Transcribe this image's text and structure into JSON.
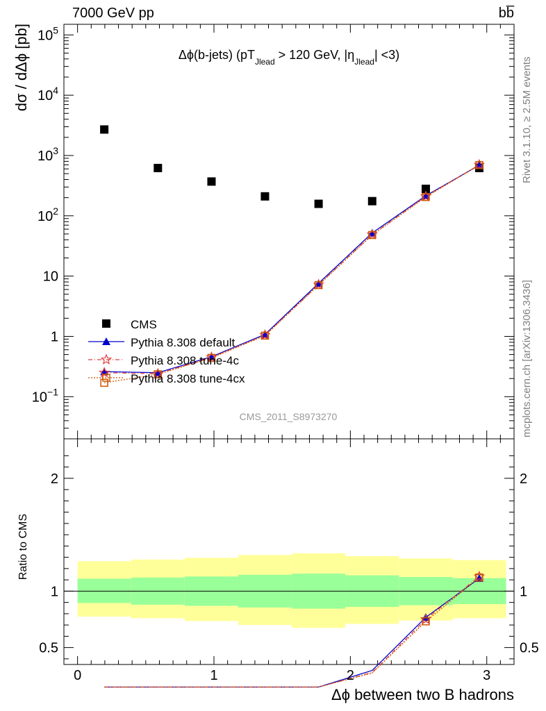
{
  "header": {
    "left": "7000 GeV pp",
    "right": "bb̅"
  },
  "side": {
    "rivet": "Rivet 3.1.10, ≥ 2.5M events",
    "mcplots": "mcplots.cern.ch [arXiv:1306.3436]"
  },
  "chart_data": {
    "type": "scatter",
    "title": "Δϕ(b-jets) (pT_Jlead > 120 GeV, |η_Jlead| <3)",
    "analysis_tag": "CMS_2011_S8973270",
    "xlabel": "Δϕ between two B hadrons",
    "ylabel": "dσ / dΔϕ [pb]",
    "ratio_ylabel": "Ratio to CMS",
    "xlim": [
      -0.1,
      3.2
    ],
    "ylim": [
      0.02,
      150000
    ],
    "yscale": "log",
    "ratio_ylim": [
      0.35,
      2.35
    ],
    "x_ticks": [
      "0",
      "1",
      "2",
      "3"
    ],
    "y_ticks": [
      "10^-1",
      "1",
      "10",
      "10^2",
      "10^3",
      "10^4",
      "10^5"
    ],
    "ratio_ticks": [
      "0.5",
      "1",
      "2"
    ],
    "legend_position": "bottom-left",
    "x": [
      0.196,
      0.589,
      0.982,
      1.374,
      1.767,
      2.16,
      2.553,
      2.945
    ],
    "bin_edges": [
      0.0,
      0.393,
      0.785,
      1.178,
      1.571,
      1.963,
      2.356,
      2.749,
      3.142
    ],
    "series": [
      {
        "name": "CMS",
        "marker": "square",
        "color": "#000000",
        "values": [
          2700,
          620,
          370,
          210,
          158,
          175,
          280,
          620
        ]
      },
      {
        "name": "Pythia 8.308 default",
        "marker": "triangle",
        "color": "#0000cc",
        "line": "solid",
        "values": [
          0.26,
          0.25,
          0.46,
          1.08,
          7.6,
          52,
          215,
          690
        ]
      },
      {
        "name": "Pythia 8.308 tune-4c",
        "marker": "star",
        "color": "#e04040",
        "line": "dashdot",
        "values": [
          0.25,
          0.24,
          0.45,
          1.05,
          7.2,
          49,
          210,
          700
        ]
      },
      {
        "name": "Pythia 8.308 tune-4cx",
        "marker": "open-square",
        "color": "#cc5500",
        "line": "dotted",
        "values": [
          0.17,
          0.235,
          0.44,
          1.03,
          7.1,
          48,
          205,
          695
        ]
      }
    ],
    "ratio_bands": {
      "green_low": [
        0.895,
        0.88,
        0.87,
        0.855,
        0.845,
        0.86,
        0.875,
        0.885
      ],
      "green_high": [
        1.11,
        1.12,
        1.13,
        1.145,
        1.155,
        1.14,
        1.125,
        1.115
      ],
      "yellow_low": [
        0.775,
        0.76,
        0.735,
        0.7,
        0.675,
        0.71,
        0.74,
        0.76
      ],
      "yellow_high": [
        1.265,
        1.28,
        1.295,
        1.32,
        1.335,
        1.31,
        1.29,
        1.275
      ]
    }
  }
}
